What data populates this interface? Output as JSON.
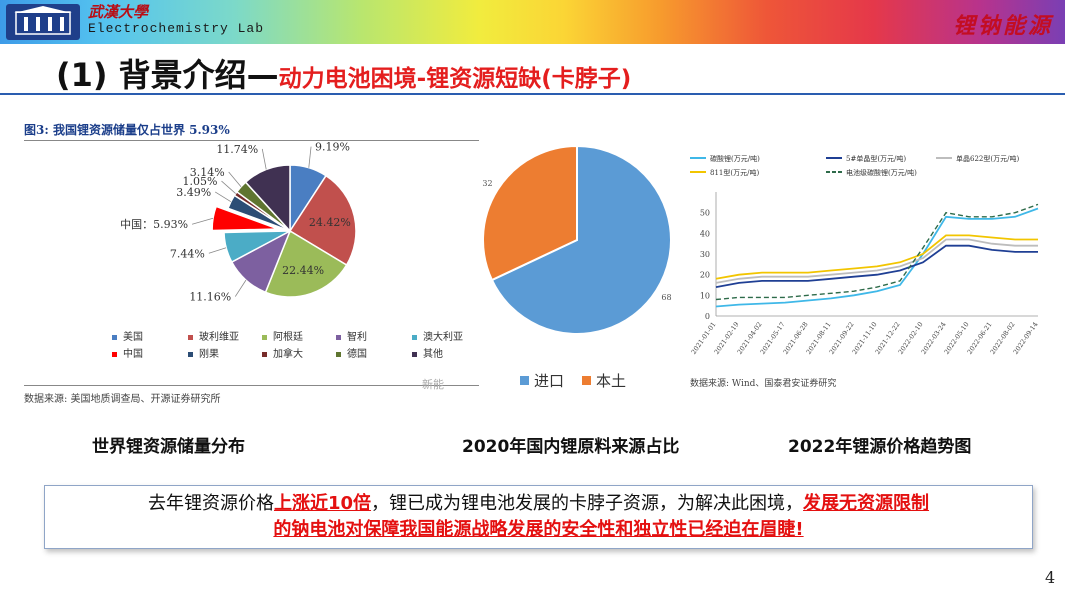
{
  "header": {
    "logo_cn": "武漢大學",
    "logo_en": "Electrochemistry Lab",
    "brand": "锂钠能源"
  },
  "title": {
    "main": "(1) 背景介绍—",
    "sub": "动力电池困境-锂资源短缺(卡脖子)"
  },
  "figure3": {
    "title": "图3: 我国锂资源储量仅占世界 5.93%",
    "source": "数据来源: 美国地质调查局、开源证券研究所",
    "caption": "世界锂资源储量分布",
    "chart_data": {
      "type": "pie",
      "slices": [
        {
          "name": "美国",
          "value": 9.19,
          "label": "9.19%",
          "color": "#4a7ec2"
        },
        {
          "name": "玻利维亚",
          "value": 24.42,
          "label": "24.42%",
          "color": "#c1504d"
        },
        {
          "name": "阿根廷",
          "value": 22.44,
          "label": "22.44%",
          "color": "#9bbb59"
        },
        {
          "name": "智利",
          "value": 11.16,
          "label": "11.16%",
          "color": "#7d60a0"
        },
        {
          "name": "澳大利亚",
          "value": 7.44,
          "label": "7.44%",
          "color": "#4bacc6"
        },
        {
          "name": "中国",
          "value": 5.93,
          "label": "中国：5.93%",
          "color": "#ff0000"
        },
        {
          "name": "刚果",
          "value": 3.49,
          "label": "3.49%",
          "color": "#2c4d75"
        },
        {
          "name": "加拿大",
          "value": 1.05,
          "label": "1.05%",
          "color": "#772c2a"
        },
        {
          "name": "德国",
          "value": 3.14,
          "label": "3.14%",
          "color": "#5f7530"
        },
        {
          "name": "其他",
          "value": 11.74,
          "label": "11.74%",
          "color": "#403152"
        }
      ]
    }
  },
  "figure_import": {
    "caption": "2020年国内锂原料来源占比",
    "watermark": "新能",
    "chart_data": {
      "type": "pie",
      "slices": [
        {
          "name": "进口",
          "value": 68,
          "label": "68",
          "color": "#5b9bd5"
        },
        {
          "name": "本土",
          "value": 32,
          "label": "32",
          "color": "#ed7d31"
        }
      ]
    }
  },
  "figure_price": {
    "caption": "2022年锂源价格趋势图",
    "source": "数据来源: Wind、国泰君安证券研究",
    "chart_data": {
      "type": "line",
      "x": [
        "2021-01-01",
        "2021-02-19",
        "2021-04-02",
        "2021-05-17",
        "2021-06-28",
        "2021-08-11",
        "2021-09-22",
        "2021-11-10",
        "2021-12-22",
        "2022-02-10",
        "2022-03-24",
        "2022-05-10",
        "2022-06-21",
        "2022-08-02",
        "2022-09-14"
      ],
      "ylim": [
        0,
        60
      ],
      "yticks": [
        "0",
        "10",
        "20",
        "30",
        "40",
        "50"
      ],
      "series": [
        {
          "name": "碳酸锂(万元/吨)",
          "color": "#3fb8e8",
          "dash": false,
          "values": [
            4.6,
            5.5,
            6.0,
            6.5,
            7.5,
            8.5,
            10,
            12,
            15,
            30,
            48,
            47,
            47,
            48,
            52
          ]
        },
        {
          "name": "5#单晶型(万元/吨)",
          "color": "#1f3f94",
          "dash": false,
          "values": [
            14,
            16,
            17,
            17,
            17,
            18,
            19,
            20,
            22,
            26,
            34,
            34,
            32,
            31,
            31
          ]
        },
        {
          "name": "单晶622型(万元/吨)",
          "color": "#bdbdbd",
          "dash": false,
          "values": [
            16,
            18,
            19,
            19,
            19,
            20,
            21,
            22,
            24,
            28,
            37,
            37,
            35,
            34,
            34
          ]
        },
        {
          "name": "811型(万元/吨)",
          "color": "#f2c500",
          "dash": false,
          "values": [
            18,
            20,
            21,
            21,
            21,
            22,
            23,
            24,
            26,
            30,
            39,
            39,
            38,
            37,
            37
          ]
        },
        {
          "name": "电池级碳酸锂(万元/吨)",
          "color": "#2e6b4a",
          "dash": true,
          "values": [
            8,
            9,
            9,
            9,
            10,
            11,
            12,
            14,
            17,
            33,
            50,
            48,
            48,
            50,
            54
          ]
        }
      ]
    }
  },
  "callout": {
    "t1": "去年锂资源价格",
    "t2": "上涨近10倍",
    "t3": "，锂已成为锂电池发展的卡脖子资源，为解决此困境，",
    "t4": "发展无资源限制",
    "t5": "的钠电池对保障我国能源战略发展的安全性和独立性已经迫在眉睫!"
  },
  "page": {
    "number": "4"
  }
}
